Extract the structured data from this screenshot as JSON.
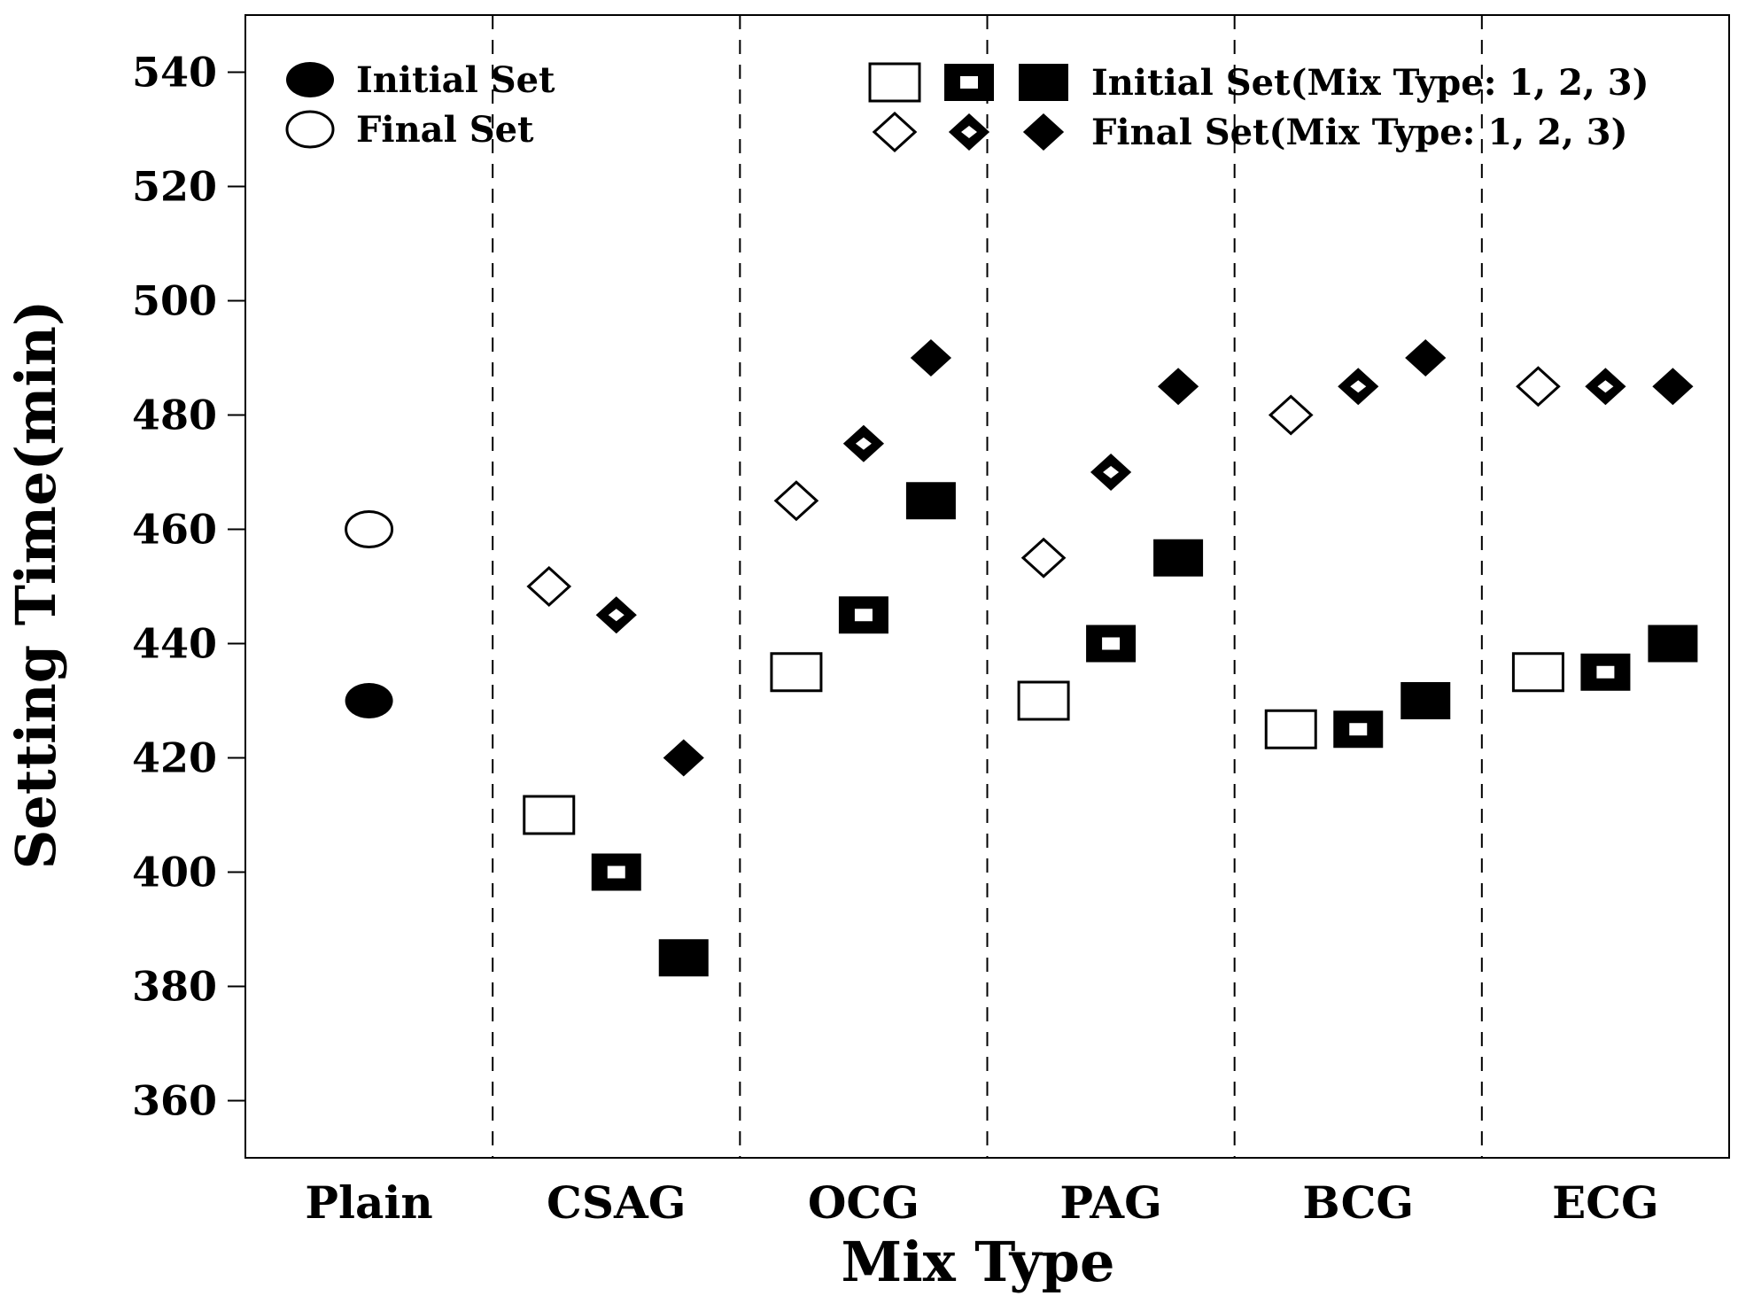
{
  "chart_data": {
    "type": "scatter",
    "title": "",
    "xlabel": "Mix Type",
    "ylabel": "Setting Time(min)",
    "ylim": [
      350,
      550
    ],
    "yticks": [
      360,
      380,
      400,
      420,
      440,
      460,
      480,
      500,
      520,
      540
    ],
    "grid": false,
    "categories": [
      "Plain",
      "CSAG",
      "OCG",
      "PAG",
      "BCG",
      "ECG"
    ],
    "plain": {
      "initial_set": 430,
      "final_set": 460
    },
    "series": [
      {
        "name": "Initial Set (Mix Type 1)",
        "marker": "square-open",
        "values": [
          null,
          410,
          435,
          430,
          425,
          435
        ]
      },
      {
        "name": "Initial Set (Mix Type 2)",
        "marker": "square-thick",
        "values": [
          null,
          400,
          445,
          440,
          425,
          435
        ]
      },
      {
        "name": "Initial Set (Mix Type 3)",
        "marker": "square-filled",
        "values": [
          null,
          385,
          465,
          455,
          430,
          440
        ]
      },
      {
        "name": "Final Set (Mix Type 1)",
        "marker": "diamond-open",
        "values": [
          null,
          450,
          465,
          455,
          480,
          485
        ]
      },
      {
        "name": "Final Set (Mix Type 2)",
        "marker": "diamond-thick",
        "values": [
          null,
          445,
          475,
          470,
          485,
          485
        ]
      },
      {
        "name": "Final Set (Mix Type 3)",
        "marker": "diamond-filled",
        "values": [
          null,
          420,
          490,
          485,
          490,
          485
        ]
      }
    ],
    "legend": {
      "left": [
        {
          "marker": "circle-filled",
          "label": "Initial Set"
        },
        {
          "marker": "circle-open",
          "label": "Final Set"
        }
      ],
      "right": [
        {
          "markers": [
            "square-open",
            "square-thick",
            "square-filled"
          ],
          "label": "Initial Set(Mix Type: 1, 2, 3)"
        },
        {
          "markers": [
            "diamond-open",
            "diamond-thick",
            "diamond-filled"
          ],
          "label": "Final Set(Mix Type: 1, 2, 3)"
        }
      ],
      "position": "top"
    },
    "separators": "dashed vertical lines between categories"
  }
}
